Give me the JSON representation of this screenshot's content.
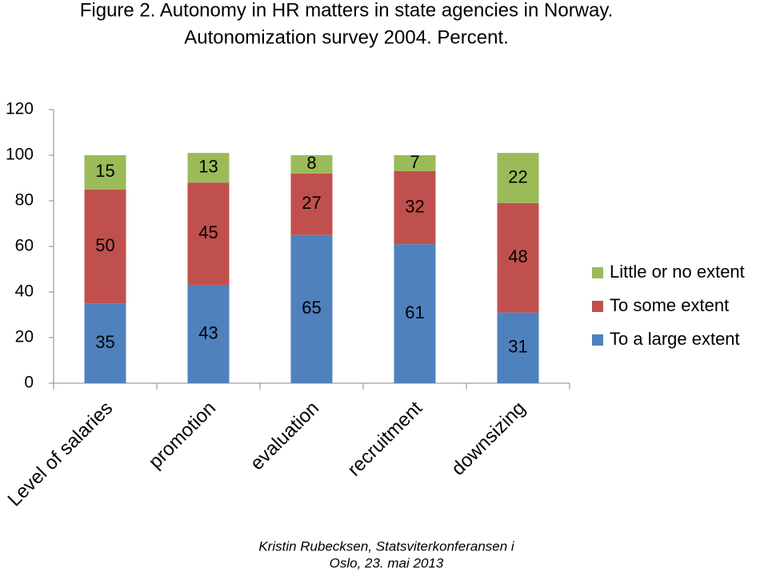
{
  "chart_data": {
    "type": "stacked_bar",
    "title": "Figure 2. Autonomy in HR matters in state agencies in Norway.",
    "subtitle": "Autonomization survey 2004. Percent.",
    "categories": [
      "Level of salaries",
      "promotion",
      "evaluation",
      "recruitment",
      "downsizing"
    ],
    "series": [
      {
        "name": "To a large extent",
        "color": "#4f81bd",
        "values": [
          35,
          43,
          65,
          61,
          31
        ]
      },
      {
        "name": "To some extent",
        "color": "#c0504d",
        "values": [
          50,
          45,
          27,
          32,
          48
        ]
      },
      {
        "name": "Little or no extent",
        "color": "#9bbb59",
        "values": [
          15,
          13,
          8,
          7,
          22
        ]
      }
    ],
    "ylim": [
      0,
      120
    ],
    "yticks": [
      0,
      20,
      40,
      60,
      80,
      100,
      120
    ],
    "grid": false,
    "legend": "right"
  },
  "footer": [
    "Kristin Rubecksen, Statsviterkonferansen i",
    "Oslo, 23. mai 2013"
  ]
}
